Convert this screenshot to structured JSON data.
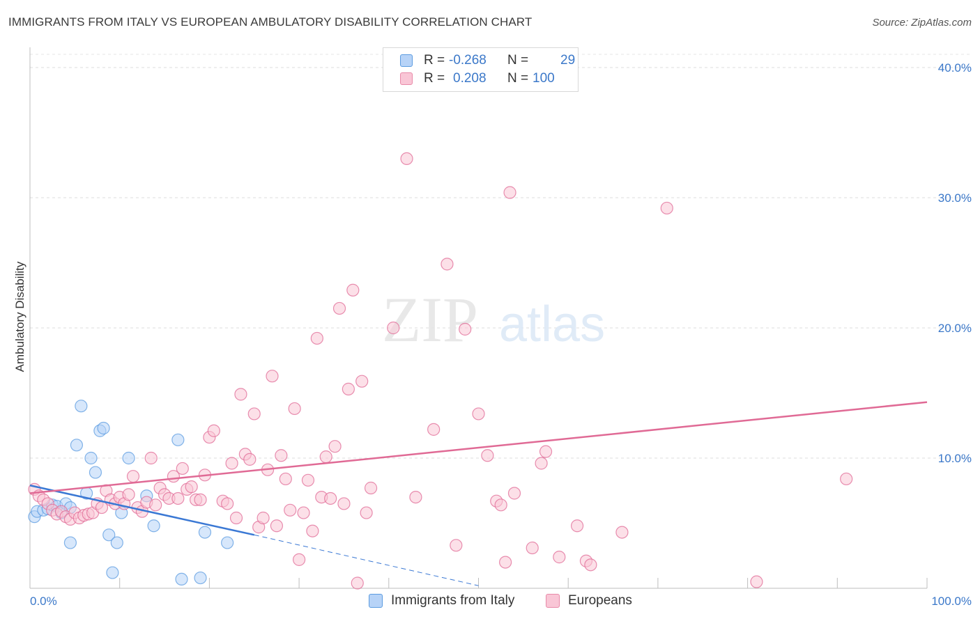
{
  "title": "IMMIGRANTS FROM ITALY VS EUROPEAN AMBULATORY DISABILITY CORRELATION CHART",
  "source": "Source: ZipAtlas.com",
  "watermark": {
    "zip": "ZIP",
    "atlas": "atlas"
  },
  "legend": {
    "rows": [
      {
        "r_label": "R =",
        "r_value": "-0.268",
        "n_label": "N =",
        "n_value": "29",
        "color": "#b7d3f7",
        "border": "#5b9be0"
      },
      {
        "r_label": "R =",
        "r_value": "0.208",
        "n_label": "N =",
        "n_value": "100",
        "color": "#f9c6d6",
        "border": "#e889a8"
      }
    ]
  },
  "bottom_legend": [
    {
      "label": "Immigrants from Italy",
      "color": "#b7d3f7",
      "border": "#5b9be0"
    },
    {
      "label": "Europeans",
      "color": "#f9c6d6",
      "border": "#e889a8"
    }
  ],
  "chart_data": {
    "type": "scatter",
    "title": "IMMIGRANTS FROM ITALY VS EUROPEAN AMBULATORY DISABILITY CORRELATION CHART",
    "xlabel": "",
    "ylabel": "Ambulatory Disability",
    "xlim": [
      0,
      100
    ],
    "ylim": [
      0,
      40
    ],
    "x_tick_labels": [
      "0.0%",
      "100.0%"
    ],
    "y_ticks": [
      10,
      20,
      30,
      40
    ],
    "y_tick_labels": [
      "10.0%",
      "20.0%",
      "30.0%",
      "40.0%"
    ],
    "series": [
      {
        "name": "Immigrants from Italy",
        "color": "#5b9be0",
        "fill": "#b7d3f7",
        "trend": {
          "x0": 0,
          "y0": 7.9,
          "x1": 25,
          "y1": 4.1,
          "dash_to_x": 50,
          "dash_to_y": 0.2
        },
        "points": [
          [
            0.5,
            5.5
          ],
          [
            0.8,
            5.9
          ],
          [
            1.5,
            6.0
          ],
          [
            2.0,
            6.1
          ],
          [
            2.5,
            6.4
          ],
          [
            3.0,
            6.3
          ],
          [
            3.5,
            5.8
          ],
          [
            4.0,
            6.5
          ],
          [
            4.5,
            6.2
          ],
          [
            4.5,
            3.5
          ],
          [
            5.2,
            11.0
          ],
          [
            5.7,
            14.0
          ],
          [
            6.3,
            7.3
          ],
          [
            6.8,
            10.0
          ],
          [
            7.3,
            8.9
          ],
          [
            7.8,
            12.1
          ],
          [
            8.2,
            12.3
          ],
          [
            8.8,
            4.1
          ],
          [
            9.2,
            1.2
          ],
          [
            9.7,
            3.5
          ],
          [
            10.2,
            5.8
          ],
          [
            11.0,
            10.0
          ],
          [
            13.0,
            7.1
          ],
          [
            13.8,
            4.8
          ],
          [
            16.5,
            11.4
          ],
          [
            16.9,
            0.7
          ],
          [
            19.0,
            0.8
          ],
          [
            19.5,
            4.3
          ],
          [
            22.0,
            3.5
          ]
        ]
      },
      {
        "name": "Europeans",
        "color": "#e06a95",
        "fill": "#f9c6d6",
        "trend": {
          "x0": 0,
          "y0": 7.3,
          "x1": 100,
          "y1": 14.3
        },
        "points": [
          [
            0.5,
            7.6
          ],
          [
            1.0,
            7.1
          ],
          [
            1.5,
            6.8
          ],
          [
            2.0,
            6.5
          ],
          [
            2.5,
            6.0
          ],
          [
            3.0,
            5.7
          ],
          [
            3.5,
            5.9
          ],
          [
            4.0,
            5.5
          ],
          [
            4.5,
            5.3
          ],
          [
            5.0,
            5.8
          ],
          [
            5.5,
            5.4
          ],
          [
            6.0,
            5.6
          ],
          [
            6.5,
            5.7
          ],
          [
            7.0,
            5.8
          ],
          [
            7.5,
            6.5
          ],
          [
            8.0,
            6.2
          ],
          [
            8.5,
            7.5
          ],
          [
            9.0,
            6.8
          ],
          [
            9.5,
            6.5
          ],
          [
            10.0,
            7.0
          ],
          [
            10.5,
            6.5
          ],
          [
            11.0,
            7.2
          ],
          [
            11.5,
            8.6
          ],
          [
            12.0,
            6.2
          ],
          [
            12.5,
            5.9
          ],
          [
            13.0,
            6.6
          ],
          [
            13.5,
            10.0
          ],
          [
            14.0,
            6.4
          ],
          [
            14.5,
            7.7
          ],
          [
            15.0,
            7.2
          ],
          [
            15.5,
            6.9
          ],
          [
            16.0,
            8.6
          ],
          [
            16.5,
            6.9
          ],
          [
            17.0,
            9.2
          ],
          [
            17.5,
            7.6
          ],
          [
            18.0,
            7.8
          ],
          [
            18.5,
            6.8
          ],
          [
            19.0,
            6.8
          ],
          [
            19.5,
            8.7
          ],
          [
            20.0,
            11.6
          ],
          [
            20.5,
            12.1
          ],
          [
            21.5,
            6.7
          ],
          [
            22.0,
            6.5
          ],
          [
            22.5,
            9.6
          ],
          [
            23.0,
            5.4
          ],
          [
            23.5,
            14.9
          ],
          [
            24.0,
            10.3
          ],
          [
            24.5,
            9.9
          ],
          [
            25.0,
            13.4
          ],
          [
            25.5,
            4.7
          ],
          [
            26.0,
            5.4
          ],
          [
            26.5,
            9.1
          ],
          [
            27.0,
            16.3
          ],
          [
            27.5,
            4.8
          ],
          [
            28.0,
            10.2
          ],
          [
            28.5,
            8.4
          ],
          [
            29.0,
            6.0
          ],
          [
            29.5,
            13.8
          ],
          [
            30.0,
            2.2
          ],
          [
            30.5,
            5.8
          ],
          [
            31.0,
            8.3
          ],
          [
            31.5,
            4.4
          ],
          [
            32.0,
            19.2
          ],
          [
            32.5,
            7.0
          ],
          [
            33.0,
            10.1
          ],
          [
            33.5,
            6.9
          ],
          [
            34.0,
            10.9
          ],
          [
            34.5,
            21.5
          ],
          [
            35.0,
            6.5
          ],
          [
            35.5,
            15.3
          ],
          [
            36.0,
            22.9
          ],
          [
            36.5,
            0.4
          ],
          [
            37.0,
            15.9
          ],
          [
            37.5,
            5.8
          ],
          [
            38.0,
            7.7
          ],
          [
            40.5,
            20.0
          ],
          [
            42.0,
            33.0
          ],
          [
            43.0,
            7.0
          ],
          [
            45.0,
            12.2
          ],
          [
            46.5,
            24.9
          ],
          [
            47.5,
            3.3
          ],
          [
            48.5,
            19.9
          ],
          [
            50.0,
            13.4
          ],
          [
            51.0,
            10.2
          ],
          [
            52.0,
            6.7
          ],
          [
            52.5,
            6.4
          ],
          [
            53.0,
            2.0
          ],
          [
            53.5,
            30.4
          ],
          [
            54.0,
            7.3
          ],
          [
            56.0,
            3.1
          ],
          [
            57.0,
            9.6
          ],
          [
            57.5,
            10.5
          ],
          [
            59.0,
            2.4
          ],
          [
            61.0,
            4.8
          ],
          [
            62.0,
            2.1
          ],
          [
            62.5,
            1.8
          ],
          [
            66.0,
            4.3
          ],
          [
            71.0,
            29.2
          ],
          [
            81.0,
            0.5
          ],
          [
            91.0,
            8.4
          ]
        ]
      }
    ]
  }
}
